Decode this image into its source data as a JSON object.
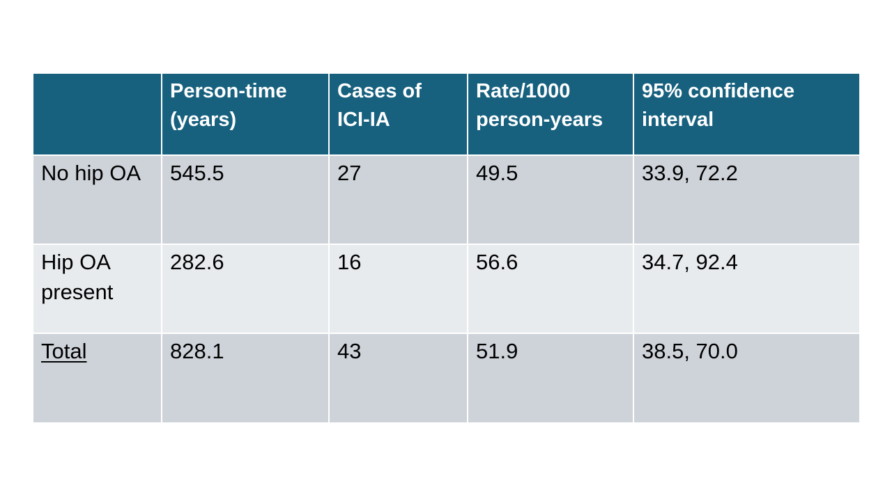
{
  "slide": {
    "background": "#FFFFFF"
  },
  "table": {
    "header": {
      "bg": "#17617F",
      "text_color": "#FFFFFF",
      "labels": [
        "",
        "Person-time (years)",
        "Cases of ICI-IA",
        "Rate/1000 person-years",
        "95% confidence interval"
      ]
    },
    "bands": {
      "dark": "#CED3DA",
      "light": "#E8EBEE"
    },
    "divider_color": "#FFFFFF",
    "body_text_color": "#000000",
    "rows": [
      {
        "cells": [
          "No hip OA",
          "545.5",
          "27",
          "49.5",
          "33.9, 72.2"
        ],
        "underline_label": false
      },
      {
        "cells": [
          "Hip OA present",
          "282.6",
          "16",
          "56.6",
          "34.7, 92.4"
        ],
        "underline_label": false
      },
      {
        "cells": [
          "Total",
          "828.1",
          "43",
          "51.9",
          "38.5, 70.0"
        ],
        "underline_label": true
      }
    ]
  },
  "chart_data": {
    "type": "table",
    "columns": [
      "",
      "Person-time (years)",
      "Cases of ICI-IA",
      "Rate/1000 person-years",
      "95% confidence interval"
    ],
    "rows": [
      [
        "No hip OA",
        545.5,
        27,
        49.5,
        "33.9, 72.2"
      ],
      [
        "Hip OA present",
        282.6,
        16,
        56.6,
        "34.7, 92.4"
      ],
      [
        "Total",
        828.1,
        43,
        51.9,
        "38.5, 70.0"
      ]
    ]
  }
}
